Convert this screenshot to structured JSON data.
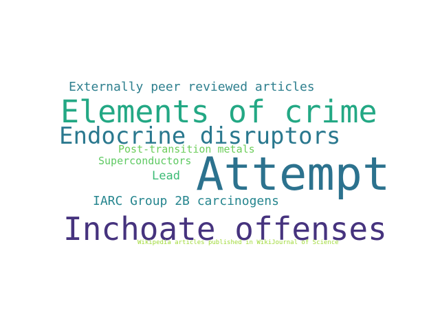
{
  "words": [
    {
      "text": "Externally peer reviewed articles",
      "color": "#2e7f8e"
    },
    {
      "text": "Elements of crime",
      "color": "#23a884"
    },
    {
      "text": "Endocrine disruptors",
      "color": "#2a788e"
    },
    {
      "text": "Post-transition metals",
      "color": "#6ccd5a"
    },
    {
      "text": "Superconductors",
      "color": "#5ec962"
    },
    {
      "text": "Attempt",
      "color": "#2c728e"
    },
    {
      "text": "Lead",
      "color": "#3bbb75"
    },
    {
      "text": "IARC Group 2B carcinogens",
      "color": "#25858e"
    },
    {
      "text": "Inchoate offenses",
      "color": "#46337e"
    },
    {
      "text": "Wikipedia articles published in WikiJournal of Science",
      "color": "#a0da39"
    }
  ]
}
